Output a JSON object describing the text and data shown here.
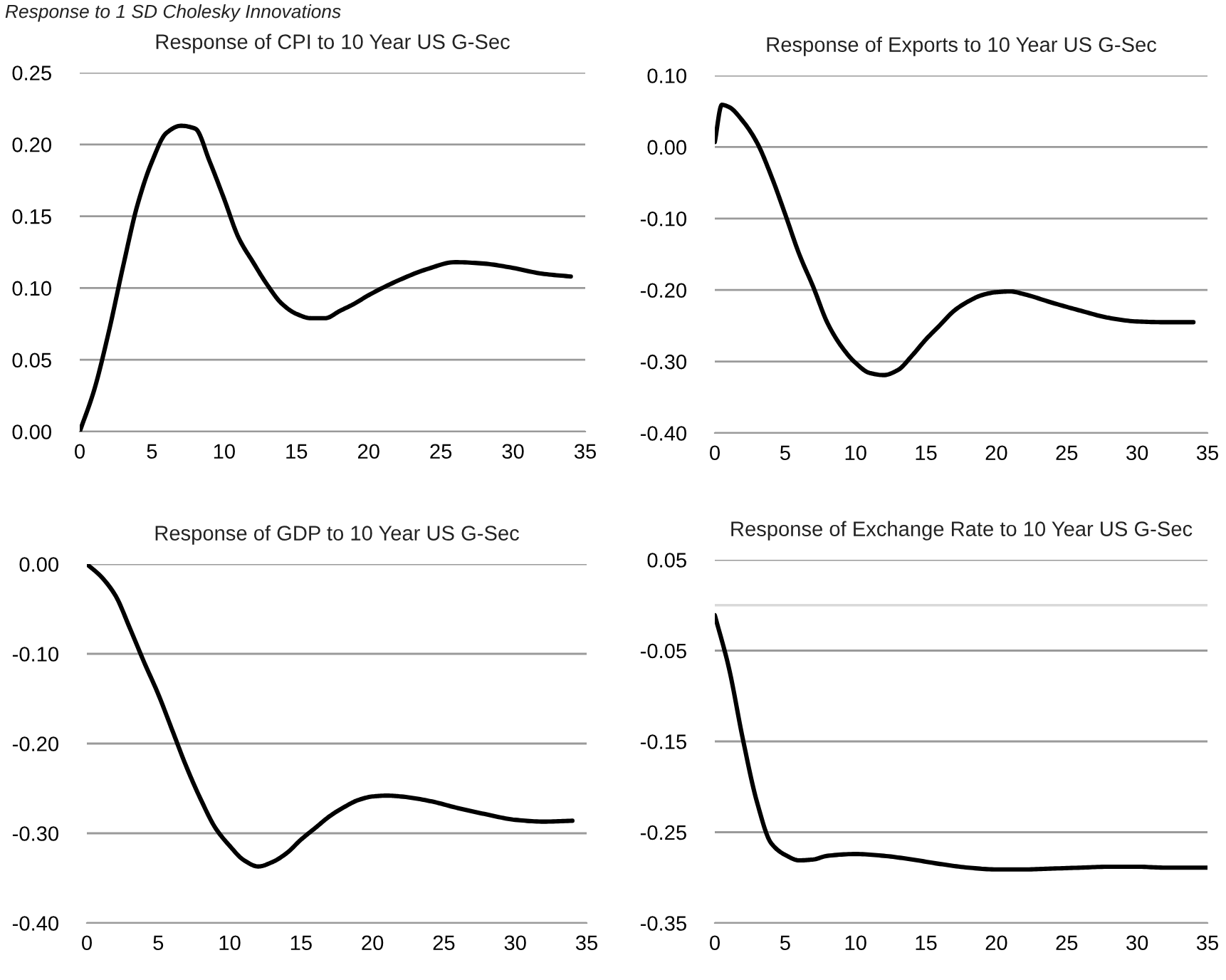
{
  "chart_data": [
    {
      "type": "line",
      "title": "Response of CPI to 10 Year US G-Sec",
      "annotations": [
        "Response to 1 SD Cholesky Innovations"
      ],
      "series": [
        {
          "color": "#000000",
          "x": [
            0,
            1,
            2,
            3,
            4,
            5,
            6,
            7,
            8,
            9,
            10,
            11,
            12,
            13,
            14,
            15,
            16,
            17,
            18,
            19,
            20,
            22,
            24,
            26,
            28,
            30,
            32,
            34
          ],
          "values": [
            0.0,
            0.029,
            0.069,
            0.115,
            0.158,
            0.188,
            0.208,
            0.213,
            0.211,
            0.188,
            0.162,
            0.135,
            0.118,
            0.102,
            0.089,
            0.082,
            0.079,
            0.079,
            0.084,
            0.089,
            0.095,
            0.105,
            0.113,
            0.118,
            0.117,
            0.114,
            0.11,
            0.108
          ]
        }
      ],
      "xlim": [
        0,
        35
      ],
      "xticks": [
        0,
        5,
        10,
        15,
        20,
        25,
        30,
        35
      ],
      "ylim": [
        0,
        0.25
      ],
      "yticks": [
        {
          "value": 0,
          "label": "0.00"
        },
        {
          "value": 0.05,
          "label": "0.05"
        },
        {
          "value": 0.1,
          "label": "0.10"
        },
        {
          "value": 0.15,
          "label": "0.15"
        },
        {
          "value": 0.2,
          "label": "0.20"
        },
        {
          "value": 0.25,
          "label": "0.25"
        }
      ],
      "grid": "y",
      "line_style": "solid"
    },
    {
      "type": "line",
      "title": "Response of Exports to 10 Year US G-Sec",
      "series": [
        {
          "color": "#000000",
          "x": [
            0,
            0.5,
            1,
            2,
            3,
            4,
            5,
            6,
            7,
            8,
            9,
            10,
            11,
            12,
            13,
            14,
            15,
            16,
            17,
            18,
            19,
            20,
            21,
            22,
            24,
            26,
            28,
            30,
            32,
            34
          ],
          "values": [
            0.007,
            0.059,
            0.056,
            0.036,
            0.006,
            -0.04,
            -0.094,
            -0.15,
            -0.196,
            -0.246,
            -0.279,
            -0.302,
            -0.316,
            -0.319,
            -0.312,
            -0.292,
            -0.269,
            -0.249,
            -0.229,
            -0.216,
            -0.207,
            -0.203,
            -0.202,
            -0.206,
            -0.218,
            -0.229,
            -0.239,
            -0.244,
            -0.245,
            -0.245
          ]
        }
      ],
      "xlim": [
        0,
        35
      ],
      "xticks": [
        0,
        5,
        10,
        15,
        20,
        25,
        30,
        35
      ],
      "ylim": [
        -0.4,
        0.1
      ],
      "yticks": [
        {
          "value": -0.4,
          "label": "-0.40"
        },
        {
          "value": -0.3,
          "label": "-0.30"
        },
        {
          "value": -0.2,
          "label": "-0.20"
        },
        {
          "value": -0.1,
          "label": "-0.10"
        },
        {
          "value": 0,
          "label": "0.00"
        },
        {
          "value": 0.1,
          "label": "0.10"
        }
      ],
      "grid": "y",
      "line_style": "solid"
    },
    {
      "type": "line",
      "title": "Response of GDP to 10 Year US G-Sec",
      "series": [
        {
          "color": "#000000",
          "x": [
            0,
            1,
            2,
            3,
            4,
            5,
            6,
            7,
            8,
            9,
            10,
            11,
            12,
            13,
            14,
            15,
            16,
            17,
            18,
            19,
            20,
            21,
            22,
            24,
            26,
            28,
            30,
            32,
            34
          ],
          "values": [
            0.0,
            -0.014,
            -0.035,
            -0.071,
            -0.109,
            -0.145,
            -0.186,
            -0.227,
            -0.263,
            -0.294,
            -0.314,
            -0.33,
            -0.337,
            -0.332,
            -0.322,
            -0.307,
            -0.294,
            -0.281,
            -0.271,
            -0.263,
            -0.259,
            -0.258,
            -0.259,
            -0.264,
            -0.272,
            -0.279,
            -0.285,
            -0.287,
            -0.286
          ]
        }
      ],
      "xlim": [
        0,
        35
      ],
      "xticks": [
        0,
        5,
        10,
        15,
        20,
        25,
        30,
        35
      ],
      "ylim": [
        -0.4,
        0
      ],
      "yticks": [
        {
          "value": -0.4,
          "label": "-0.40"
        },
        {
          "value": -0.3,
          "label": "-0.30"
        },
        {
          "value": -0.2,
          "label": "-0.20"
        },
        {
          "value": -0.1,
          "label": "-0.10"
        },
        {
          "value": 0,
          "label": "0.00"
        }
      ],
      "grid": "y",
      "line_style": "solid"
    },
    {
      "type": "line",
      "title": "Response of Exchange Rate to 10 Year US G-Sec",
      "series": [
        {
          "color": "#000000",
          "x": [
            0,
            1,
            2,
            3,
            4,
            5,
            6,
            7,
            8,
            10,
            12,
            14,
            16,
            18,
            20,
            22,
            24,
            26,
            28,
            30,
            32,
            34,
            35
          ],
          "values": [
            -0.011,
            -0.069,
            -0.148,
            -0.217,
            -0.262,
            -0.275,
            -0.281,
            -0.28,
            -0.276,
            -0.274,
            -0.276,
            -0.28,
            -0.285,
            -0.289,
            -0.291,
            -0.291,
            -0.29,
            -0.289,
            -0.288,
            -0.288,
            -0.289,
            -0.289,
            -0.289
          ]
        }
      ],
      "xlim": [
        0,
        35
      ],
      "xticks": [
        0,
        5,
        10,
        15,
        20,
        25,
        30,
        35
      ],
      "ylim": [
        -0.35,
        0.05
      ],
      "yticks": [
        {
          "value": -0.35,
          "label": "-0.35"
        },
        {
          "value": -0.25,
          "label": "-0.25"
        },
        {
          "value": -0.15,
          "label": "-0.15"
        },
        {
          "value": -0.05,
          "label": "-0.05"
        },
        {
          "value": 0.05,
          "label": "0.05"
        }
      ],
      "ref_lines": [
        {
          "axis": "y",
          "value": 0,
          "color": "#d9d9d9"
        }
      ],
      "grid": "y",
      "line_style": "solid"
    }
  ]
}
